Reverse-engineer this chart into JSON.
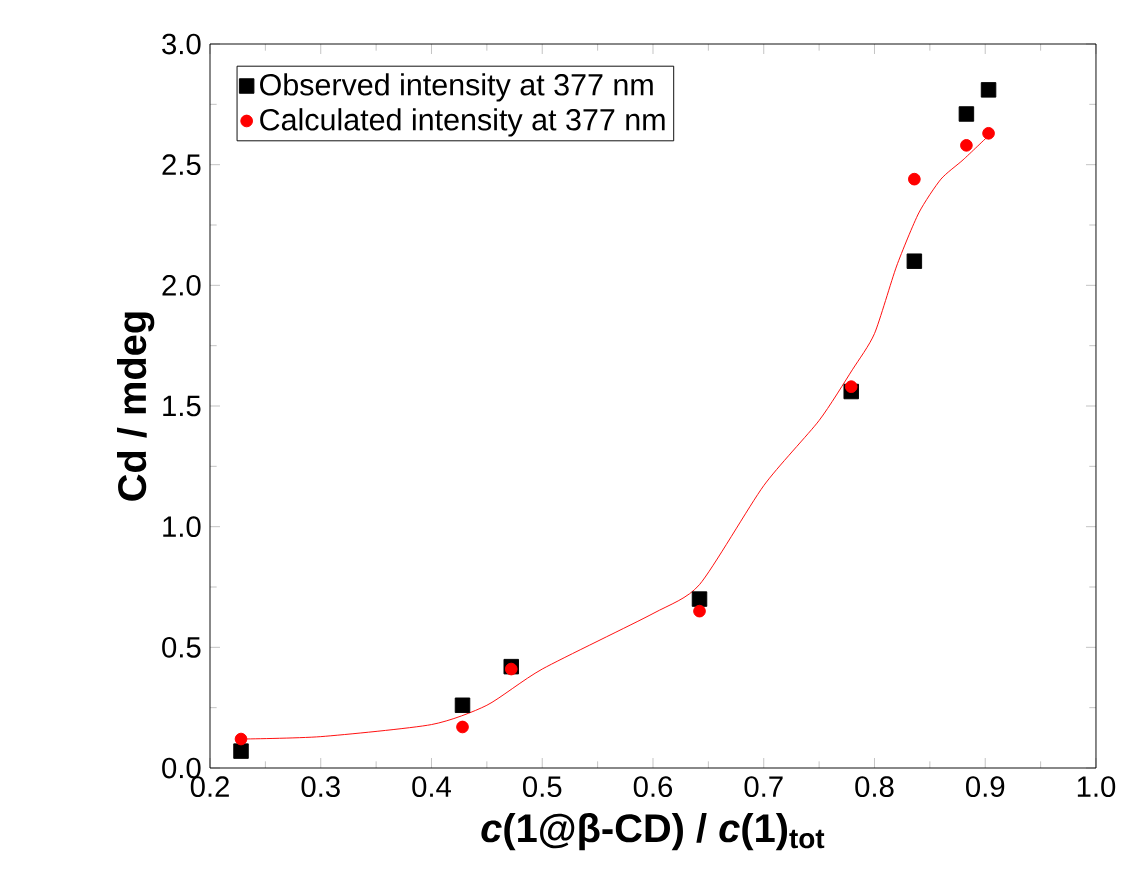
{
  "chart_data": {
    "type": "scatter",
    "xlabel": "*c*(1@β-CD) / *c*(1)$_{tot}$",
    "ylabel": "Cd / mdeg",
    "xlim": [
      0.2,
      1.0
    ],
    "ylim": [
      0,
      3.0
    ],
    "xticks": [
      {
        "value": 0.2,
        "label": "0.2"
      },
      {
        "value": 0.3,
        "label": "0.3"
      },
      {
        "value": 0.4,
        "label": "0.4"
      },
      {
        "value": 0.5,
        "label": "0.5"
      },
      {
        "value": 0.6,
        "label": "0.6"
      },
      {
        "value": 0.7,
        "label": "0.7"
      },
      {
        "value": 0.8,
        "label": "0.8"
      },
      {
        "value": 0.9,
        "label": "0.9"
      },
      {
        "value": 1.0,
        "label": "1.0"
      }
    ],
    "yticks": [
      {
        "value": 0,
        "label": "0.0"
      },
      {
        "value": 0.5,
        "label": "0.5"
      },
      {
        "value": 1.0,
        "label": "1.0"
      },
      {
        "value": 1.5,
        "label": "1.5"
      },
      {
        "value": 2.0,
        "label": "2.0"
      },
      {
        "value": 2.5,
        "label": "2.5"
      },
      {
        "value": 3.0,
        "label": "3.0"
      }
    ],
    "x": [
      0.228,
      0.428,
      0.472,
      0.642,
      0.779,
      0.836,
      0.883,
      0.903
    ],
    "legend": "top left",
    "series": [
      {
        "name": "Observed intensity at 377 nm",
        "color": "#000000",
        "marker": "square",
        "values": [
          0.07,
          0.26,
          0.42,
          0.7,
          1.56,
          2.1,
          2.71,
          2.81
        ]
      },
      {
        "name": "Calculated intensity at 377 nm",
        "color": "#ff0000",
        "marker": "circle",
        "values": [
          0.12,
          0.17,
          0.41,
          0.65,
          1.58,
          2.44,
          2.58,
          2.63
        ]
      },
      {
        "type": "line",
        "color": "#ff0000",
        "marker": "none",
        "x": [
          0.228,
          0.3,
          0.4,
          0.45,
          0.5,
          0.6,
          0.642,
          0.7,
          0.75,
          0.78,
          0.8,
          0.82,
          0.84,
          0.86,
          0.88,
          0.903
        ],
        "values": [
          0.12,
          0.13,
          0.18,
          0.26,
          0.41,
          0.64,
          0.76,
          1.17,
          1.44,
          1.65,
          1.8,
          2.08,
          2.3,
          2.44,
          2.52,
          2.62
        ]
      }
    ]
  }
}
